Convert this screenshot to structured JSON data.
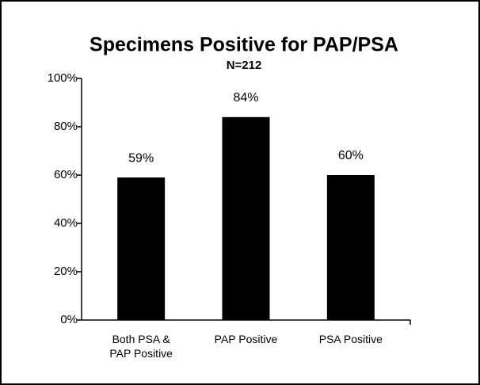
{
  "chart_data": {
    "type": "bar",
    "title": "Specimens Positive for PAP/PSA",
    "subtitle": "N=212",
    "categories": [
      "Both PSA & PAP Positive",
      "PAP Positive",
      "PSA Positive"
    ],
    "values": [
      59,
      84,
      60
    ],
    "value_labels": [
      "59%",
      "84%",
      "60%"
    ],
    "color": "#000000",
    "ylim": [
      0,
      100
    ],
    "yticks": [
      {
        "value": 0,
        "label": "0%"
      },
      {
        "value": 20,
        "label": "20%"
      },
      {
        "value": 40,
        "label": "40%"
      },
      {
        "value": 60,
        "label": "60%"
      },
      {
        "value": 80,
        "label": "80%"
      },
      {
        "value": 100,
        "label": "100%"
      }
    ],
    "grid": false
  }
}
